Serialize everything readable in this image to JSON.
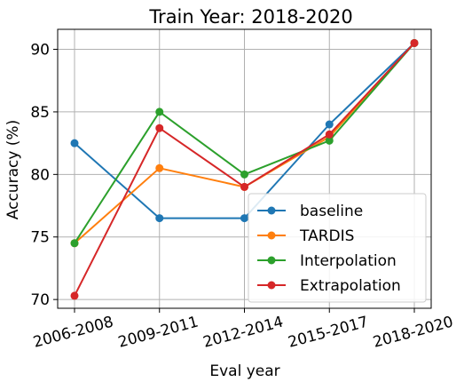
{
  "chart_data": {
    "type": "line",
    "title": "Train Year: 2018-2020",
    "xlabel": "Eval year",
    "ylabel": "Accuracy (%)",
    "categories": [
      "2006-2008",
      "2009-2011",
      "2012-2014",
      "2015-2017",
      "2018-2020"
    ],
    "ylim": [
      69.3,
      91.6
    ],
    "yticks": [
      70,
      75,
      80,
      85,
      90
    ],
    "grid": true,
    "legend_position": "lower-right",
    "series": [
      {
        "name": "baseline",
        "color": "#1f77b4",
        "values": [
          82.5,
          76.5,
          76.5,
          84.0,
          90.5
        ]
      },
      {
        "name": "TARDIS",
        "color": "#ff7f0e",
        "values": [
          74.5,
          80.5,
          79.0,
          83.0,
          90.5
        ]
      },
      {
        "name": "Interpolation",
        "color": "#2ca02c",
        "values": [
          74.5,
          85.0,
          80.0,
          82.7,
          90.5
        ]
      },
      {
        "name": "Extrapolation",
        "color": "#d62728",
        "values": [
          70.3,
          83.7,
          79.0,
          83.2,
          90.5
        ]
      }
    ]
  }
}
